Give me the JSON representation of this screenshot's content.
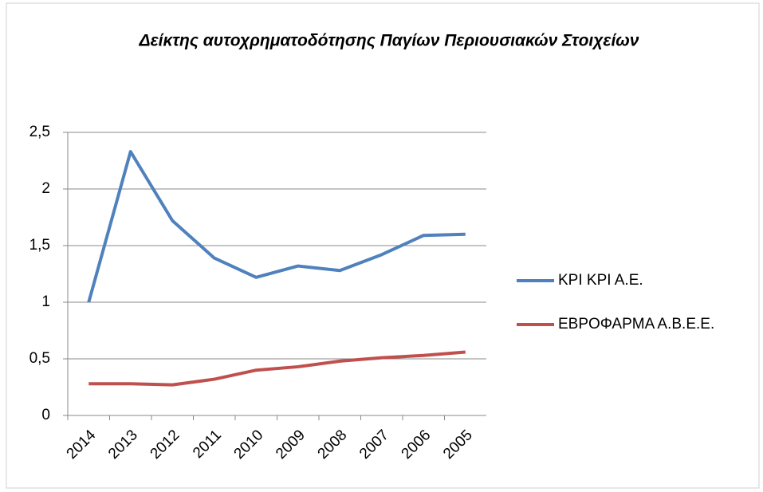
{
  "chart_data": {
    "type": "line",
    "title": "Δείκτης αυτοχρηματοδότησης Παγίων Περιουσιακών Στοιχείων",
    "categories": [
      "2014",
      "2013",
      "2012",
      "2011",
      "2010",
      "2009",
      "2008",
      "2007",
      "2006",
      "2005"
    ],
    "series": [
      {
        "name": "ΚΡΙ ΚΡΙ Α.Ε.",
        "color": "#4f81bd",
        "values": [
          1.0,
          2.33,
          1.72,
          1.39,
          1.22,
          1.32,
          1.28,
          1.42,
          1.59,
          1.6
        ]
      },
      {
        "name": "ΕΒΡΟΦΑΡΜΑ Α.Β.Ε.Ε.",
        "color": "#c0504d",
        "values": [
          0.28,
          0.28,
          0.27,
          0.32,
          0.4,
          0.43,
          0.48,
          0.51,
          0.53,
          0.56
        ]
      }
    ],
    "ylim": [
      0,
      2.5
    ],
    "yticks": [
      0,
      {
        "value": 0.5,
        "label": "0,5"
      },
      1,
      {
        "value": 1.5,
        "label": "1,5"
      },
      2,
      {
        "value": 2.5,
        "label": "2,5"
      }
    ],
    "grid": true,
    "legend": "right"
  }
}
